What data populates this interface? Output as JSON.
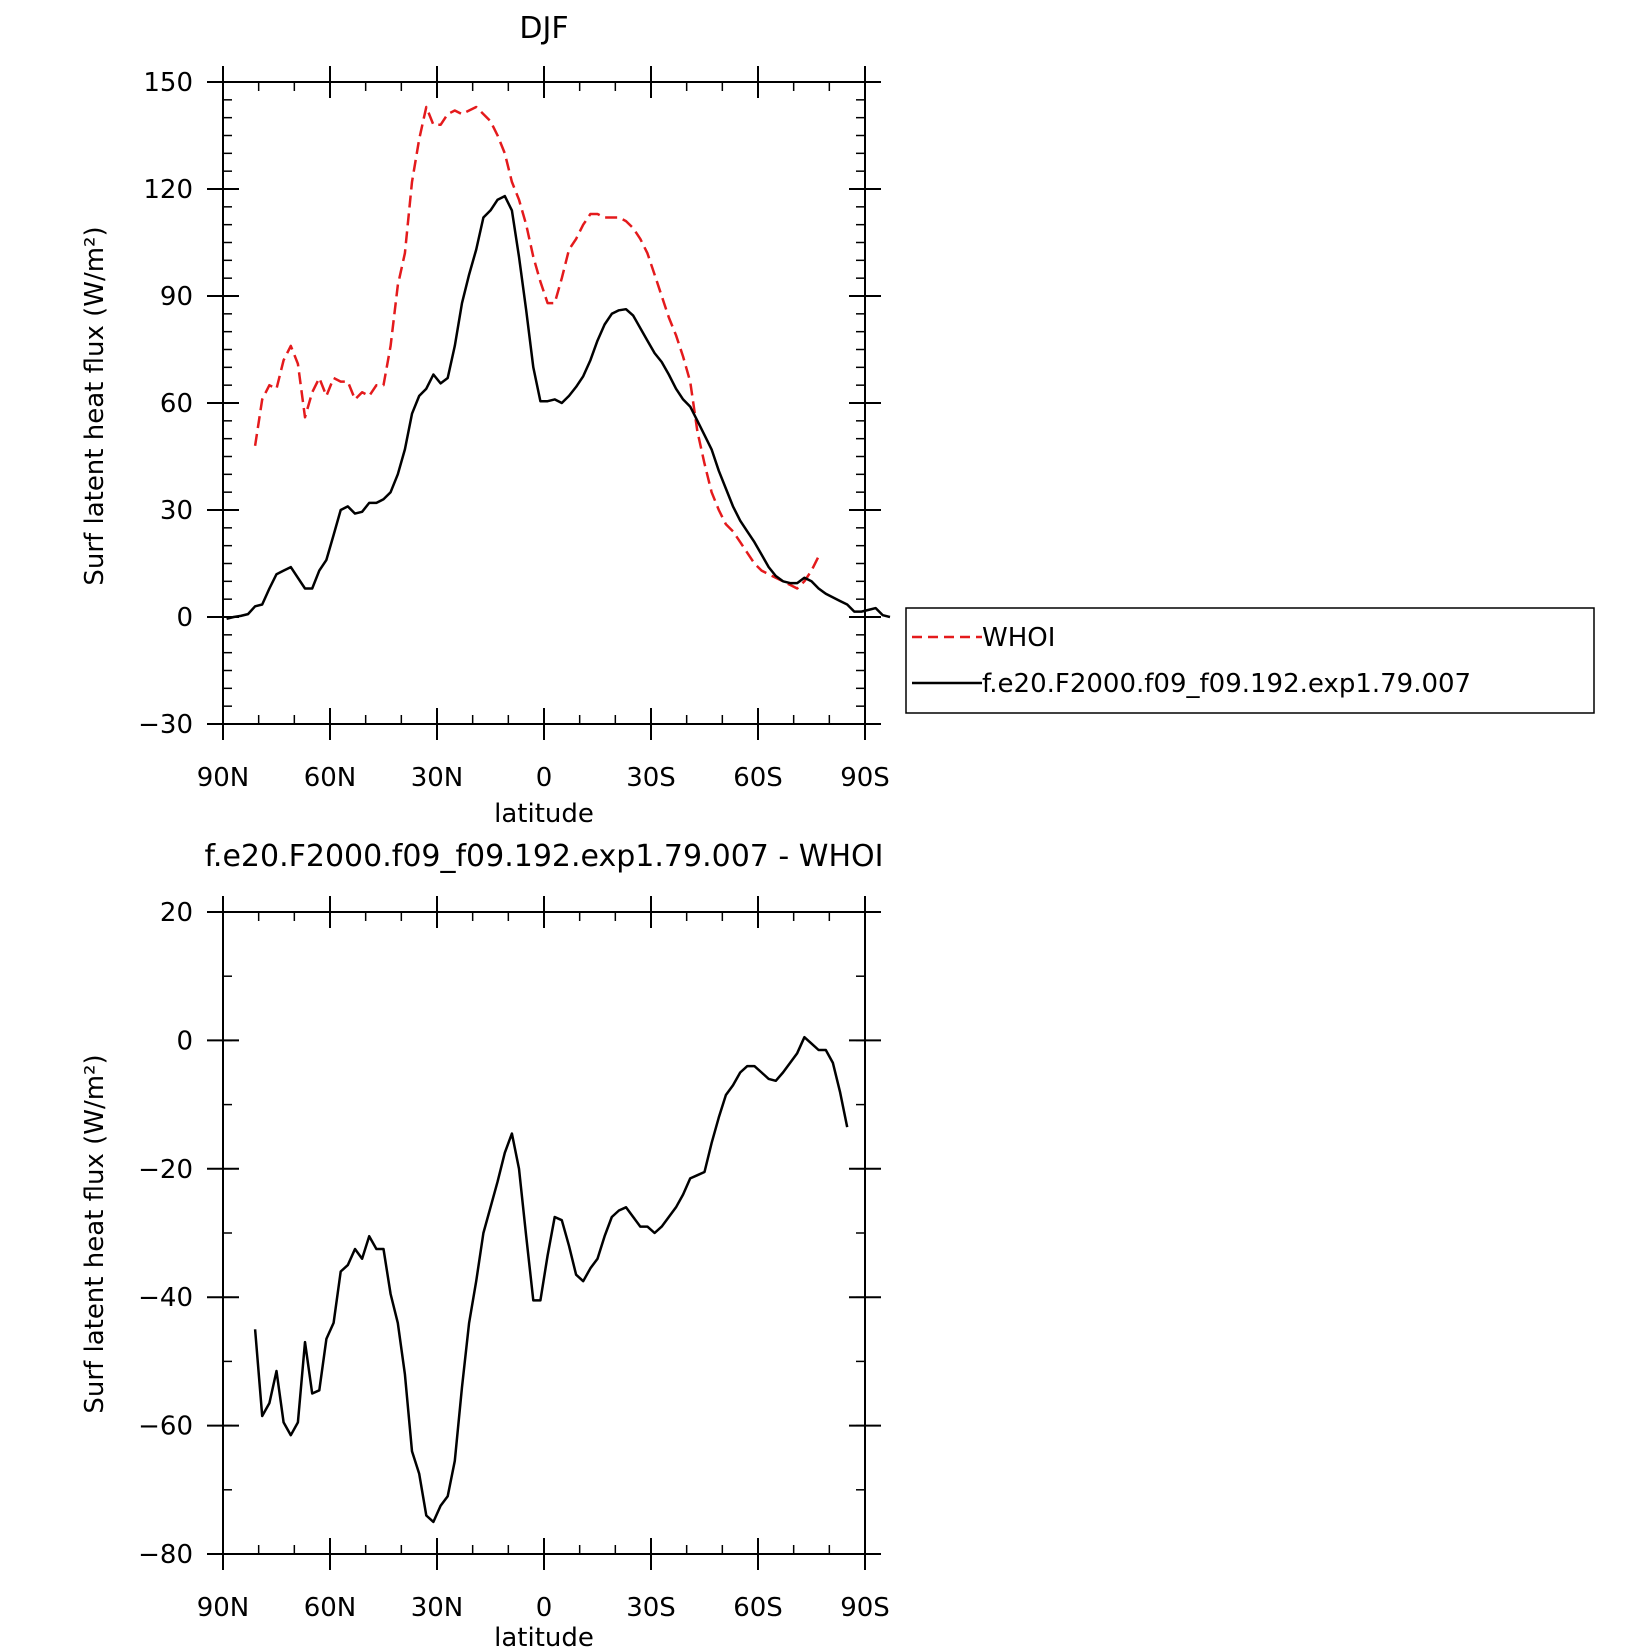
{
  "chart_data": [
    {
      "type": "line",
      "title": "DJF",
      "xlabel": "latitude",
      "ylabel": "Surf latent heat flux (W/m²)",
      "ylim": [
        -30,
        150
      ],
      "xlim": [
        90,
        -90
      ],
      "yticks": [
        -30,
        0,
        30,
        60,
        90,
        120,
        150
      ],
      "xticks": [
        {
          "value": 90,
          "label": "90N"
        },
        {
          "value": 60,
          "label": "60N"
        },
        {
          "value": 30,
          "label": "30N"
        },
        {
          "value": 0,
          "label": "0"
        },
        {
          "value": -30,
          "label": "30S"
        },
        {
          "value": -60,
          "label": "60S"
        },
        {
          "value": -90,
          "label": "90S"
        }
      ],
      "legend": {
        "position": "right",
        "entries": [
          "WHOI",
          "f.e20.F2000.f09_f09.192.exp1.79.007"
        ]
      },
      "series": [
        {
          "name": "WHOI",
          "color": "#e41a1c",
          "dash": "dashed",
          "points": [
            [
              81,
              48
            ],
            [
              79,
              61
            ],
            [
              77,
              65
            ],
            [
              75,
              64
            ],
            [
              73,
              72
            ],
            [
              71,
              76
            ],
            [
              69,
              71
            ],
            [
              67,
              56
            ],
            [
              65,
              63
            ],
            [
              63,
              67
            ],
            [
              61,
              62
            ],
            [
              59,
              67
            ],
            [
              57,
              66
            ],
            [
              55,
              66
            ],
            [
              53,
              61
            ],
            [
              51,
              63
            ],
            [
              49,
              62
            ],
            [
              47,
              65
            ],
            [
              45,
              65
            ],
            [
              43,
              76
            ],
            [
              41,
              93
            ],
            [
              39,
              102
            ],
            [
              37,
              122
            ],
            [
              35,
              134
            ],
            [
              33,
              143
            ],
            [
              31,
              138
            ],
            [
              29,
              138
            ],
            [
              27,
              141
            ],
            [
              25,
              142
            ],
            [
              23,
              141
            ],
            [
              21,
              142
            ],
            [
              19,
              143
            ],
            [
              17,
              141
            ],
            [
              15,
              139
            ],
            [
              13,
              135
            ],
            [
              11,
              130
            ],
            [
              9,
              122
            ],
            [
              7,
              117
            ],
            [
              5,
              110
            ],
            [
              3,
              101
            ],
            [
              1,
              94
            ],
            [
              -1,
              88
            ],
            [
              -3,
              88
            ],
            [
              -5,
              95
            ],
            [
              -7,
              103
            ],
            [
              -9,
              106
            ],
            [
              -11,
              110
            ],
            [
              -13,
              113
            ],
            [
              -15,
              113
            ],
            [
              -17,
              112
            ],
            [
              -19,
              112
            ],
            [
              -21,
              112
            ],
            [
              -23,
              111
            ],
            [
              -25,
              109
            ],
            [
              -27,
              106
            ],
            [
              -29,
              102
            ],
            [
              -31,
              96
            ],
            [
              -33,
              90
            ],
            [
              -35,
              84
            ],
            [
              -37,
              79
            ],
            [
              -39,
              73
            ],
            [
              -41,
              66
            ],
            [
              -43,
              52
            ],
            [
              -45,
              43
            ],
            [
              -47,
              35
            ],
            [
              -49,
              30
            ],
            [
              -51,
              26
            ],
            [
              -53,
              24
            ],
            [
              -55,
              21
            ],
            [
              -57,
              18
            ],
            [
              -59,
              15
            ],
            [
              -61,
              13
            ],
            [
              -63,
              12
            ],
            [
              -65,
              11
            ],
            [
              -67,
              10
            ],
            [
              -69,
              9
            ],
            [
              -71,
              8
            ],
            [
              -73,
              10
            ],
            [
              -75,
              13
            ],
            [
              -77,
              17
            ]
          ]
        },
        {
          "name": "f.e20.F2000.f09_f09.192.exp1.79.007",
          "color": "#000000",
          "dash": "solid",
          "points": [
            [
              89,
              -0.5
            ],
            [
              87,
              0
            ],
            [
              85,
              0.3
            ],
            [
              83,
              0.8
            ],
            [
              81,
              3
            ],
            [
              79,
              3.5
            ],
            [
              77,
              8
            ],
            [
              75,
              12
            ],
            [
              73,
              13
            ],
            [
              71,
              14
            ],
            [
              69,
              11
            ],
            [
              67,
              8
            ],
            [
              65,
              8
            ],
            [
              63,
              13
            ],
            [
              61,
              16
            ],
            [
              59,
              23
            ],
            [
              57,
              30
            ],
            [
              55,
              31
            ],
            [
              53,
              29
            ],
            [
              51,
              29.5
            ],
            [
              49,
              32
            ],
            [
              47,
              32
            ],
            [
              45,
              33
            ],
            [
              43,
              35
            ],
            [
              41,
              40
            ],
            [
              39,
              47
            ],
            [
              37,
              57
            ],
            [
              35,
              62
            ],
            [
              33,
              64
            ],
            [
              31,
              68
            ],
            [
              29,
              65.5
            ],
            [
              27,
              67
            ],
            [
              25,
              76
            ],
            [
              23,
              88
            ],
            [
              21,
              96
            ],
            [
              19,
              103
            ],
            [
              17,
              112
            ],
            [
              15,
              114
            ],
            [
              13,
              117
            ],
            [
              11,
              118
            ],
            [
              9,
              114
            ],
            [
              7,
              101
            ],
            [
              5,
              86
            ],
            [
              3,
              70
            ],
            [
              1,
              60.5
            ],
            [
              -1,
              60.5
            ],
            [
              -3,
              61
            ],
            [
              -5,
              60
            ],
            [
              -7,
              62
            ],
            [
              -9,
              64.5
            ],
            [
              -11,
              67.5
            ],
            [
              -13,
              72
            ],
            [
              -15,
              77.5
            ],
            [
              -17,
              82
            ],
            [
              -19,
              85
            ],
            [
              -21,
              86
            ],
            [
              -23,
              86.3
            ],
            [
              -25,
              84.5
            ],
            [
              -27,
              81
            ],
            [
              -29,
              77.5
            ],
            [
              -31,
              74
            ],
            [
              -33,
              71.5
            ],
            [
              -35,
              68
            ],
            [
              -37,
              64
            ],
            [
              -39,
              61
            ],
            [
              -41,
              59
            ],
            [
              -43,
              55
            ],
            [
              -45,
              51
            ],
            [
              -47,
              47
            ],
            [
              -49,
              41
            ],
            [
              -51,
              36
            ],
            [
              -53,
              31
            ],
            [
              -55,
              27
            ],
            [
              -57,
              24
            ],
            [
              -59,
              21
            ],
            [
              -61,
              17.5
            ],
            [
              -63,
              14
            ],
            [
              -65,
              11.5
            ],
            [
              -67,
              10
            ],
            [
              -69,
              9.5
            ],
            [
              -71,
              9.5
            ],
            [
              -73,
              11
            ],
            [
              -75,
              10
            ],
            [
              -77,
              8
            ],
            [
              -79,
              6.5
            ],
            [
              -81,
              5.5
            ],
            [
              -83,
              4.5
            ],
            [
              -85,
              3.5
            ],
            [
              -87,
              1.5
            ],
            [
              -89,
              1.5
            ],
            [
              -91,
              2
            ],
            [
              -93,
              2.5
            ],
            [
              -95,
              0.5
            ],
            [
              -97,
              0
            ]
          ]
        }
      ]
    },
    {
      "type": "line",
      "title": "f.e20.F2000.f09_f09.192.exp1.79.007 - WHOI",
      "xlabel": "latitude",
      "ylabel": "Surf latent heat flux (W/m²)",
      "ylim": [
        -80,
        20
      ],
      "xlim": [
        90,
        -90
      ],
      "yticks": [
        -80,
        -60,
        -40,
        -20,
        0,
        20
      ],
      "xticks": [
        {
          "value": 90,
          "label": "90N"
        },
        {
          "value": 60,
          "label": "60N"
        },
        {
          "value": 30,
          "label": "30N"
        },
        {
          "value": 0,
          "label": "0"
        },
        {
          "value": -30,
          "label": "30S"
        },
        {
          "value": -60,
          "label": "60S"
        },
        {
          "value": -90,
          "label": "90S"
        }
      ],
      "series": [
        {
          "color": "#000000",
          "dash": "solid",
          "points": [
            [
              81,
              -45
            ],
            [
              79,
              -58.5
            ],
            [
              77,
              -56.5
            ],
            [
              75,
              -51.5
            ],
            [
              73,
              -59.5
            ],
            [
              71,
              -61.5
            ],
            [
              69,
              -59.5
            ],
            [
              67,
              -47
            ],
            [
              65,
              -55
            ],
            [
              63,
              -54.5
            ],
            [
              61,
              -46.5
            ],
            [
              59,
              -44
            ],
            [
              57,
              -36
            ],
            [
              55,
              -35
            ],
            [
              53,
              -32.5
            ],
            [
              51,
              -34
            ],
            [
              49,
              -30.5
            ],
            [
              47,
              -32.5
            ],
            [
              45,
              -32.5
            ],
            [
              43,
              -39.5
            ],
            [
              41,
              -44
            ],
            [
              39,
              -52
            ],
            [
              37,
              -64
            ],
            [
              35,
              -67.5
            ],
            [
              33,
              -74
            ],
            [
              31,
              -75
            ],
            [
              29,
              -72.5
            ],
            [
              27,
              -71
            ],
            [
              25,
              -65.5
            ],
            [
              23,
              -54
            ],
            [
              21,
              -44
            ],
            [
              19,
              -37.5
            ],
            [
              17,
              -30
            ],
            [
              15,
              -26
            ],
            [
              13,
              -22
            ],
            [
              11,
              -17.5
            ],
            [
              9,
              -14.5
            ],
            [
              7,
              -20
            ],
            [
              5,
              -30.5
            ],
            [
              3,
              -40.5
            ],
            [
              1,
              -40.5
            ],
            [
              -1,
              -33.5
            ],
            [
              -3,
              -27.5
            ],
            [
              -5,
              -28
            ],
            [
              -7,
              -32
            ],
            [
              -9,
              -36.5
            ],
            [
              -11,
              -37.5
            ],
            [
              -13,
              -35.5
            ],
            [
              -15,
              -34
            ],
            [
              -17,
              -30.5
            ],
            [
              -19,
              -27.5
            ],
            [
              -21,
              -26.5
            ],
            [
              -23,
              -26
            ],
            [
              -25,
              -27.5
            ],
            [
              -27,
              -29
            ],
            [
              -29,
              -29
            ],
            [
              -31,
              -30
            ],
            [
              -33,
              -29
            ],
            [
              -35,
              -27.5
            ],
            [
              -37,
              -26
            ],
            [
              -39,
              -24
            ],
            [
              -41,
              -21.5
            ],
            [
              -43,
              -21
            ],
            [
              -45,
              -20.5
            ],
            [
              -47,
              -16
            ],
            [
              -49,
              -12
            ],
            [
              -51,
              -8.5
            ],
            [
              -53,
              -7
            ],
            [
              -55,
              -5
            ],
            [
              -57,
              -4
            ],
            [
              -59,
              -4
            ],
            [
              -61,
              -5
            ],
            [
              -63,
              -6
            ],
            [
              -65,
              -6.3
            ],
            [
              -67,
              -5
            ],
            [
              -69,
              -3.5
            ],
            [
              -71,
              -2
            ],
            [
              -73,
              0.5
            ],
            [
              -75,
              -0.5
            ],
            [
              -77,
              -1.5
            ],
            [
              -79,
              -1.5
            ],
            [
              -81,
              -3.5
            ],
            [
              -83,
              -8
            ],
            [
              -85,
              -13.5
            ]
          ]
        }
      ]
    }
  ]
}
